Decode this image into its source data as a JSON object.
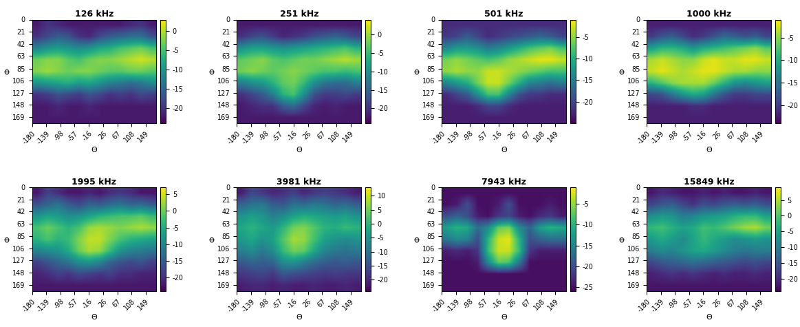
{
  "chart_data": [
    {
      "type": "heatmap",
      "title": "126 kHz",
      "xlabel": "Θ",
      "ylabel": "Φ",
      "xlim": [
        -180,
        180
      ],
      "ylim": [
        180,
        0
      ],
      "xticks": [
        -180,
        -139,
        -98,
        -57,
        -16,
        26,
        67,
        108,
        149
      ],
      "yticks": [
        0,
        21,
        42,
        63,
        85,
        106,
        127,
        148,
        169
      ],
      "colorbar_range": [
        -24,
        3
      ],
      "colorbar_ticks": [
        -20,
        -15,
        -10,
        -5,
        0
      ],
      "cells": [
        [
          -22,
          -20,
          -21,
          -22,
          -22,
          -22,
          -22,
          -22,
          -22,
          -21,
          -20,
          -22
        ],
        [
          -20,
          -18,
          -16,
          -17,
          -20,
          -21,
          -18,
          -16,
          -15,
          -14,
          -14,
          -17
        ],
        [
          -12,
          -10,
          -9,
          -10,
          -11,
          -10,
          -8,
          -7,
          -5,
          -4,
          -3,
          -5
        ],
        [
          -3,
          -2,
          -2,
          -4,
          -5,
          -3,
          -2,
          -2,
          -1,
          0,
          1,
          0
        ],
        [
          -2,
          -1,
          -2,
          -3,
          -2,
          -2,
          -3,
          -4,
          -4,
          -3,
          -3,
          -4
        ],
        [
          -10,
          -9,
          -8,
          -7,
          -9,
          -8,
          -10,
          -12,
          -13,
          -14,
          -13,
          -11
        ],
        [
          -20,
          -19,
          -17,
          -18,
          -19,
          -17,
          -18,
          -20,
          -19,
          -20,
          -18,
          -19
        ],
        [
          -22,
          -22,
          -21,
          -22,
          -22,
          -21,
          -22,
          -22,
          -22,
          -22,
          -22,
          -22
        ],
        [
          -22,
          -22,
          -22,
          -22,
          -22,
          -22,
          -22,
          -22,
          -22,
          -22,
          -22,
          -22
        ]
      ]
    },
    {
      "type": "heatmap",
      "title": "251 kHz",
      "xlabel": "Θ",
      "ylabel": "Φ",
      "xlim": [
        -180,
        180
      ],
      "ylim": [
        180,
        0
      ],
      "xticks": [
        -180,
        -139,
        -98,
        -57,
        -16,
        26,
        67,
        108,
        149
      ],
      "yticks": [
        0,
        21,
        42,
        63,
        85,
        106,
        127,
        148,
        169
      ],
      "colorbar_range": [
        -24,
        4
      ],
      "colorbar_ticks": [
        -20,
        -15,
        -10,
        -5,
        0
      ],
      "cells": [
        [
          -22,
          -22,
          -22,
          -22,
          -22,
          -22,
          -22,
          -22,
          -22,
          -22,
          -22,
          -22
        ],
        [
          -20,
          -18,
          -17,
          -19,
          -21,
          -20,
          -19,
          -17,
          -16,
          -15,
          -16,
          -18
        ],
        [
          -10,
          -8,
          -8,
          -9,
          -10,
          -9,
          -8,
          -7,
          -6,
          -5,
          -4,
          -6
        ],
        [
          -3,
          -2,
          -1,
          -3,
          -4,
          -3,
          -2,
          -2,
          -1,
          0,
          1,
          0
        ],
        [
          -2,
          -1,
          -2,
          -3,
          -2,
          -1,
          -2,
          -3,
          -4,
          -4,
          -5,
          -4
        ],
        [
          -12,
          -10,
          -9,
          -6,
          -3,
          -2,
          -5,
          -10,
          -13,
          -14,
          -14,
          -12
        ],
        [
          -20,
          -18,
          -16,
          -12,
          -6,
          -4,
          -10,
          -17,
          -19,
          -19,
          -18,
          -19
        ],
        [
          -22,
          -21,
          -20,
          -20,
          -16,
          -14,
          -18,
          -21,
          -22,
          -21,
          -22,
          -22
        ],
        [
          -22,
          -22,
          -22,
          -22,
          -22,
          -22,
          -22,
          -22,
          -22,
          -22,
          -22,
          -22
        ]
      ]
    },
    {
      "type": "heatmap",
      "title": "501 kHz",
      "xlabel": "Θ",
      "ylabel": "Φ",
      "xlim": [
        -180,
        180
      ],
      "ylim": [
        180,
        0
      ],
      "xticks": [
        -180,
        -139,
        -98,
        -57,
        -16,
        26,
        67,
        108,
        149
      ],
      "yticks": [
        0,
        21,
        42,
        63,
        85,
        106,
        127,
        148,
        169
      ],
      "colorbar_range": [
        -25,
        -1
      ],
      "colorbar_ticks": [
        -20,
        -15,
        -10,
        -5
      ],
      "cells": [
        [
          -22,
          -22,
          -22,
          -22,
          -22,
          -22,
          -22,
          -22,
          -22,
          -22,
          -22,
          -22
        ],
        [
          -21,
          -20,
          -18,
          -20,
          -22,
          -21,
          -20,
          -19,
          -18,
          -17,
          -18,
          -20
        ],
        [
          -14,
          -12,
          -12,
          -13,
          -15,
          -14,
          -12,
          -10,
          -8,
          -7,
          -6,
          -8
        ],
        [
          -6,
          -5,
          -6,
          -7,
          -8,
          -7,
          -5,
          -4,
          -3,
          -2,
          -2,
          -3
        ],
        [
          -5,
          -4,
          -5,
          -5,
          -3,
          -3,
          -4,
          -5,
          -6,
          -7,
          -8,
          -8
        ],
        [
          -14,
          -12,
          -10,
          -6,
          -3,
          -3,
          -6,
          -10,
          -14,
          -15,
          -16,
          -15
        ],
        [
          -22,
          -20,
          -18,
          -13,
          -8,
          -8,
          -14,
          -19,
          -21,
          -21,
          -22,
          -22
        ],
        [
          -23,
          -23,
          -23,
          -22,
          -20,
          -20,
          -22,
          -23,
          -23,
          -23,
          -23,
          -23
        ],
        [
          -23,
          -23,
          -23,
          -23,
          -23,
          -23,
          -23,
          -23,
          -23,
          -23,
          -23,
          -23
        ]
      ]
    },
    {
      "type": "heatmap",
      "title": "1000 kHz",
      "xlabel": "Θ",
      "ylabel": "Φ",
      "xlim": [
        -180,
        180
      ],
      "ylim": [
        180,
        0
      ],
      "xticks": [
        -180,
        -139,
        -98,
        -57,
        -16,
        26,
        67,
        108,
        149
      ],
      "yticks": [
        0,
        21,
        42,
        63,
        85,
        106,
        127,
        148,
        169
      ],
      "colorbar_range": [
        -24,
        -1
      ],
      "colorbar_ticks": [
        -20,
        -15,
        -10,
        -5
      ],
      "cells": [
        [
          -22,
          -22,
          -22,
          -22,
          -22,
          -22,
          -22,
          -22,
          -22,
          -22,
          -22,
          -22
        ],
        [
          -20,
          -18,
          -17,
          -19,
          -21,
          -20,
          -18,
          -16,
          -17,
          -18,
          -17,
          -19
        ],
        [
          -11,
          -9,
          -9,
          -10,
          -12,
          -10,
          -9,
          -8,
          -7,
          -6,
          -5,
          -7
        ],
        [
          -4,
          -3,
          -4,
          -5,
          -5,
          -3,
          -2,
          -3,
          -3,
          -2,
          -2,
          -3
        ],
        [
          -3,
          -2,
          -3,
          -4,
          -3,
          -2,
          -2,
          -3,
          -4,
          -4,
          -5,
          -5
        ],
        [
          -9,
          -7,
          -5,
          -4,
          -4,
          -4,
          -6,
          -9,
          -12,
          -13,
          -12,
          -11
        ],
        [
          -19,
          -18,
          -15,
          -12,
          -10,
          -11,
          -15,
          -18,
          -20,
          -20,
          -19,
          -19
        ],
        [
          -22,
          -22,
          -22,
          -22,
          -21,
          -21,
          -22,
          -22,
          -22,
          -22,
          -22,
          -22
        ],
        [
          -22,
          -22,
          -22,
          -22,
          -22,
          -22,
          -22,
          -22,
          -22,
          -22,
          -22,
          -22
        ]
      ]
    },
    {
      "type": "heatmap",
      "title": "1995 kHz",
      "xlabel": "Θ",
      "ylabel": "Φ",
      "xlim": [
        -180,
        180
      ],
      "ylim": [
        180,
        0
      ],
      "xticks": [
        -180,
        -139,
        -98,
        -57,
        -16,
        26,
        67,
        108,
        149
      ],
      "yticks": [
        0,
        21,
        42,
        63,
        85,
        106,
        127,
        148,
        169
      ],
      "colorbar_range": [
        -24,
        7
      ],
      "colorbar_ticks": [
        -20,
        -15,
        -10,
        -5,
        0,
        5
      ],
      "cells": [
        [
          -22,
          -18,
          -20,
          -22,
          -22,
          -21,
          -22,
          -20,
          -19,
          -20,
          -22,
          -22
        ],
        [
          -16,
          -14,
          -12,
          -15,
          -17,
          -14,
          -15,
          -13,
          -12,
          -14,
          -13,
          -15
        ],
        [
          -8,
          -6,
          -7,
          -9,
          -8,
          -6,
          -4,
          -3,
          -2,
          -2,
          -1,
          -3
        ],
        [
          -2,
          0,
          -2,
          -4,
          -2,
          2,
          3,
          2,
          1,
          2,
          3,
          2
        ],
        [
          -4,
          -2,
          -4,
          -3,
          1,
          4,
          4,
          1,
          -2,
          -4,
          -5,
          -6
        ],
        [
          -10,
          -9,
          -8,
          -5,
          0,
          3,
          2,
          -3,
          -8,
          -10,
          -11,
          -12
        ],
        [
          -18,
          -16,
          -14,
          -12,
          -9,
          -8,
          -10,
          -14,
          -16,
          -17,
          -16,
          -18
        ],
        [
          -21,
          -20,
          -18,
          -19,
          -17,
          -18,
          -19,
          -18,
          -20,
          -20,
          -21,
          -21
        ],
        [
          -22,
          -22,
          -22,
          -22,
          -22,
          -22,
          -22,
          -22,
          -22,
          -22,
          -22,
          -22
        ]
      ]
    },
    {
      "type": "heatmap",
      "title": "3981 kHz",
      "xlabel": "Θ",
      "ylabel": "Φ",
      "xlim": [
        -180,
        180
      ],
      "ylim": [
        180,
        0
      ],
      "xticks": [
        -180,
        -139,
        -98,
        -57,
        -16,
        26,
        67,
        108,
        149
      ],
      "yticks": [
        0,
        21,
        42,
        63,
        85,
        106,
        127,
        148,
        169
      ],
      "colorbar_range": [
        -24,
        13
      ],
      "colorbar_ticks": [
        -20,
        -15,
        -10,
        -5,
        0,
        5,
        10
      ],
      "cells": [
        [
          -21,
          -16,
          -18,
          -20,
          -19,
          -17,
          -20,
          -18,
          -17,
          -18,
          -19,
          -21
        ],
        [
          -12,
          -10,
          -9,
          -13,
          -14,
          -10,
          -11,
          -9,
          -10,
          -12,
          -11,
          -13
        ],
        [
          -5,
          -3,
          -5,
          -8,
          -6,
          -3,
          -1,
          -2,
          -3,
          -4,
          -3,
          -5
        ],
        [
          -2,
          0,
          -2,
          -4,
          0,
          5,
          6,
          3,
          0,
          -1,
          1,
          0
        ],
        [
          -4,
          -2,
          -5,
          -3,
          3,
          8,
          7,
          2,
          -3,
          -5,
          -6,
          -5
        ],
        [
          -8,
          -6,
          -9,
          -6,
          1,
          5,
          4,
          -2,
          -7,
          -9,
          -10,
          -9
        ],
        [
          -14,
          -12,
          -13,
          -12,
          -6,
          -5,
          -8,
          -11,
          -13,
          -14,
          -13,
          -14
        ],
        [
          -18,
          -17,
          -16,
          -18,
          -14,
          -15,
          -16,
          -17,
          -18,
          -17,
          -18,
          -18
        ],
        [
          -21,
          -20,
          -20,
          -21,
          -20,
          -21,
          -21,
          -20,
          -21,
          -21,
          -20,
          -21
        ]
      ]
    },
    {
      "type": "heatmap",
      "title": "7943 kHz",
      "xlabel": "Θ",
      "ylabel": "Φ",
      "xlim": [
        -180,
        180
      ],
      "ylim": [
        180,
        0
      ],
      "xticks": [
        -180,
        -139,
        -98,
        -57,
        -16,
        26,
        67,
        108,
        149
      ],
      "yticks": [
        0,
        21,
        42,
        63,
        85,
        106,
        127,
        148,
        169
      ],
      "colorbar_range": [
        -26,
        -1
      ],
      "colorbar_ticks": [
        -25,
        -20,
        -15,
        -10,
        -5
      ],
      "cells": [
        [
          -25,
          -25,
          -25,
          -25,
          -25,
          -25,
          -25,
          -25,
          -25,
          -25,
          -25,
          -25
        ],
        [
          -25,
          -24,
          -20,
          -25,
          -25,
          -24,
          -20,
          -25,
          -25,
          -25,
          -24,
          -25
        ],
        [
          -20,
          -18,
          -20,
          -24,
          -25,
          -22,
          -21,
          -24,
          -25,
          -23,
          -22,
          -24
        ],
        [
          -12,
          -10,
          -11,
          -17,
          -14,
          -7,
          -6,
          -14,
          -18,
          -12,
          -10,
          -11
        ],
        [
          -16,
          -14,
          -15,
          -20,
          -10,
          -3,
          -2,
          -10,
          -20,
          -18,
          -17,
          -17
        ],
        [
          -24,
          -23,
          -24,
          -22,
          -9,
          -3,
          -3,
          -9,
          -22,
          -24,
          -24,
          -24
        ],
        [
          -25,
          -25,
          -25,
          -24,
          -14,
          -7,
          -8,
          -16,
          -25,
          -25,
          -25,
          -25
        ],
        [
          -25,
          -25,
          -25,
          -25,
          -25,
          -25,
          -25,
          -25,
          -25,
          -25,
          -25,
          -25
        ],
        [
          -25,
          -25,
          -25,
          -25,
          -25,
          -25,
          -25,
          -25,
          -25,
          -25,
          -25,
          -25
        ]
      ]
    },
    {
      "type": "heatmap",
      "title": "15849 kHz",
      "xlabel": "Θ",
      "ylabel": "Φ",
      "xlim": [
        -180,
        180
      ],
      "ylim": [
        180,
        0
      ],
      "xticks": [
        -180,
        -139,
        -98,
        -57,
        -16,
        26,
        67,
        108,
        149
      ],
      "yticks": [
        0,
        21,
        42,
        63,
        85,
        106,
        127,
        148,
        169
      ],
      "colorbar_range": [
        -24,
        9
      ],
      "colorbar_ticks": [
        -20,
        -15,
        -10,
        -5,
        0,
        5
      ],
      "cells": [
        [
          -22,
          -20,
          -21,
          -22,
          -22,
          -21,
          -22,
          -21,
          -22,
          -22,
          -21,
          -22
        ],
        [
          -17,
          -15,
          -14,
          -17,
          -19,
          -16,
          -17,
          -15,
          -14,
          -15,
          -14,
          -16
        ],
        [
          -8,
          -6,
          -7,
          -10,
          -9,
          -7,
          -6,
          -5,
          -3,
          -2,
          -2,
          -5
        ],
        [
          -2,
          -1,
          -3,
          -5,
          -4,
          -1,
          -2,
          0,
          2,
          4,
          5,
          2
        ],
        [
          -6,
          -4,
          -6,
          -8,
          -5,
          -2,
          -4,
          -6,
          -8,
          -7,
          -6,
          -7
        ],
        [
          -10,
          -8,
          -9,
          -7,
          -5,
          -4,
          -6,
          -8,
          -10,
          -11,
          -10,
          -10
        ],
        [
          -17,
          -15,
          -14,
          -13,
          -12,
          -13,
          -14,
          -15,
          -16,
          -17,
          -16,
          -17
        ],
        [
          -21,
          -20,
          -19,
          -20,
          -19,
          -20,
          -21,
          -20,
          -21,
          -21,
          -20,
          -21
        ],
        [
          -22,
          -22,
          -22,
          -22,
          -22,
          -22,
          -22,
          -22,
          -22,
          -22,
          -22,
          -22
        ]
      ]
    }
  ]
}
